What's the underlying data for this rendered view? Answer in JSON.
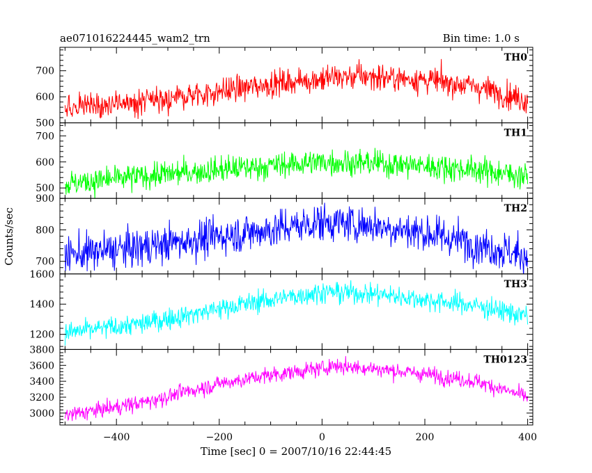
{
  "chart_data": {
    "type": "line",
    "title": "ae071016224445_wam2_trn",
    "subtitle": "Bin time: 1.0 s",
    "xlabel": "Time [sec] 0 = 2007/10/16 22:44:45",
    "ylabel": "Counts/sec",
    "xlim": [
      -510,
      410
    ],
    "x_ticks": [
      -400,
      -200,
      0,
      200,
      400
    ],
    "x_tick_labels": [
      "−400",
      "−200",
      "0",
      "200",
      "400"
    ],
    "bin_time": 1.0,
    "data_range": [
      -500,
      400
    ],
    "grid": false,
    "legend": "none",
    "panels": [
      {
        "name": "TH0",
        "color": "#ff0000",
        "ylim": [
          500,
          790
        ],
        "y_ticks": [
          500,
          600,
          700
        ],
        "y_tick_labels": [
          "500",
          "600",
          "700"
        ],
        "profile": {
          "x": [
            -500,
            -350,
            -200,
            -100,
            0,
            80,
            200,
            300,
            400
          ],
          "y": [
            555,
            580,
            620,
            650,
            670,
            680,
            665,
            640,
            585
          ]
        },
        "noise_sd": 25
      },
      {
        "name": "TH1",
        "color": "#00ff00",
        "ylim": [
          460,
          750
        ],
        "y_ticks": [
          500,
          600,
          700
        ],
        "y_tick_labels": [
          "500",
          "600",
          "700"
        ],
        "profile": {
          "x": [
            -500,
            -350,
            -200,
            -100,
            0,
            100,
            200,
            300,
            400
          ],
          "y": [
            515,
            545,
            570,
            585,
            600,
            595,
            585,
            570,
            545
          ]
        },
        "noise_sd": 25
      },
      {
        "name": "TH2",
        "color": "#0000ff",
        "ylim": [
          660,
          900
        ],
        "y_ticks": [
          700,
          800,
          900
        ],
        "y_tick_labels": [
          "700",
          "800",
          "900"
        ],
        "profile": {
          "x": [
            -500,
            -350,
            -200,
            -100,
            0,
            100,
            200,
            300,
            400
          ],
          "y": [
            720,
            745,
            780,
            800,
            825,
            815,
            790,
            755,
            715
          ]
        },
        "noise_sd": 30
      },
      {
        "name": "TH3",
        "color": "#00ffff",
        "ylim": [
          1100,
          1600
        ],
        "y_ticks": [
          1200,
          1400,
          1600
        ],
        "y_tick_labels": [
          "1200",
          "1400",
          "1600"
        ],
        "profile": {
          "x": [
            -500,
            -350,
            -200,
            -100,
            0,
            100,
            200,
            300,
            400
          ],
          "y": [
            1210,
            1270,
            1370,
            1430,
            1480,
            1470,
            1430,
            1390,
            1320
          ]
        },
        "noise_sd": 35
      },
      {
        "name": "TH0123",
        "color": "#ff00ff",
        "ylim": [
          2850,
          3800
        ],
        "y_ticks": [
          3000,
          3200,
          3400,
          3600,
          3800
        ],
        "y_tick_labels": [
          "3000",
          "3200",
          "3400",
          "3600",
          "3800"
        ],
        "profile": {
          "x": [
            -500,
            -350,
            -200,
            -100,
            0,
            20,
            100,
            200,
            300,
            400
          ],
          "y": [
            2970,
            3130,
            3370,
            3480,
            3560,
            3600,
            3560,
            3490,
            3400,
            3200
          ]
        },
        "noise_sd": 50
      }
    ]
  }
}
